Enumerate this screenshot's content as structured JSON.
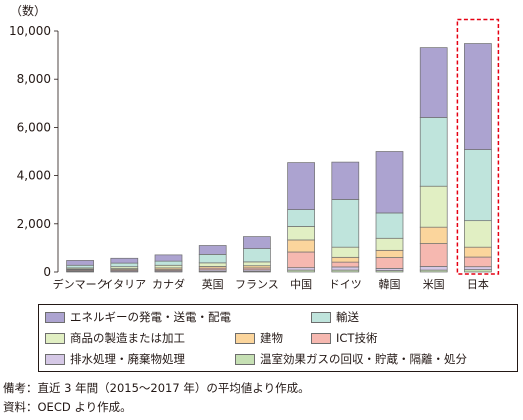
{
  "chart_data": {
    "type": "bar",
    "stacked": true,
    "unit_label": "（数）",
    "ylim": [
      0,
      10000
    ],
    "yticks": [
      "0",
      "2,000",
      "4,000",
      "6,000",
      "8,000",
      "10,000"
    ],
    "ytick_values": [
      0,
      2000,
      4000,
      6000,
      8000,
      10000
    ],
    "grid": false,
    "categories": [
      "デンマーク",
      "イタリア",
      "カナダ",
      "英国",
      "フランス",
      "中国",
      "ドイツ",
      "韓国",
      "米国",
      "日本"
    ],
    "highlight_category": "日本",
    "series": [
      {
        "name": "温室効果ガスの回収・貯蔵・隔離・処分",
        "color": "#c6e0b4",
        "values": [
          20,
          20,
          20,
          30,
          30,
          80,
          80,
          60,
          80,
          100
        ]
      },
      {
        "name": "排水処理・廃棄物処理",
        "color": "#d5c8e6",
        "values": [
          30,
          40,
          40,
          60,
          60,
          100,
          130,
          90,
          150,
          120
        ]
      },
      {
        "name": "ICT技術",
        "color": "#f6b8b0",
        "values": [
          40,
          40,
          40,
          70,
          80,
          650,
          200,
          450,
          950,
          400
        ]
      },
      {
        "name": "建物",
        "color": "#fbd59c",
        "values": [
          30,
          40,
          70,
          70,
          90,
          500,
          200,
          300,
          680,
          410
        ]
      },
      {
        "name": "商品の製造または加工",
        "color": "#e1efc3",
        "values": [
          50,
          80,
          110,
          150,
          160,
          560,
          420,
          500,
          1700,
          1100
        ]
      },
      {
        "name": "輸送",
        "color": "#bfe4dc",
        "values": [
          110,
          150,
          170,
          350,
          550,
          700,
          1980,
          1050,
          2850,
          2950
        ]
      },
      {
        "name": "エネルギーの発電・送電・配電",
        "color": "#aca3d0",
        "values": [
          200,
          200,
          260,
          370,
          500,
          1950,
          1550,
          2550,
          2900,
          4400
        ]
      }
    ]
  },
  "legend": {
    "rows": [
      [
        "エネルギーの発電・送電・配電",
        "輸送"
      ],
      [
        "商品の製造または加工",
        "建物",
        "ICT技術"
      ],
      [
        "排水処理・廃棄物処理",
        "温室効果ガスの回収・貯蔵・隔離・処分"
      ]
    ]
  },
  "notes": {
    "remark": "備考：直近 3 年間（2015〜2017 年）の平均値より作成。",
    "source": "資料：OECD より作成。"
  }
}
